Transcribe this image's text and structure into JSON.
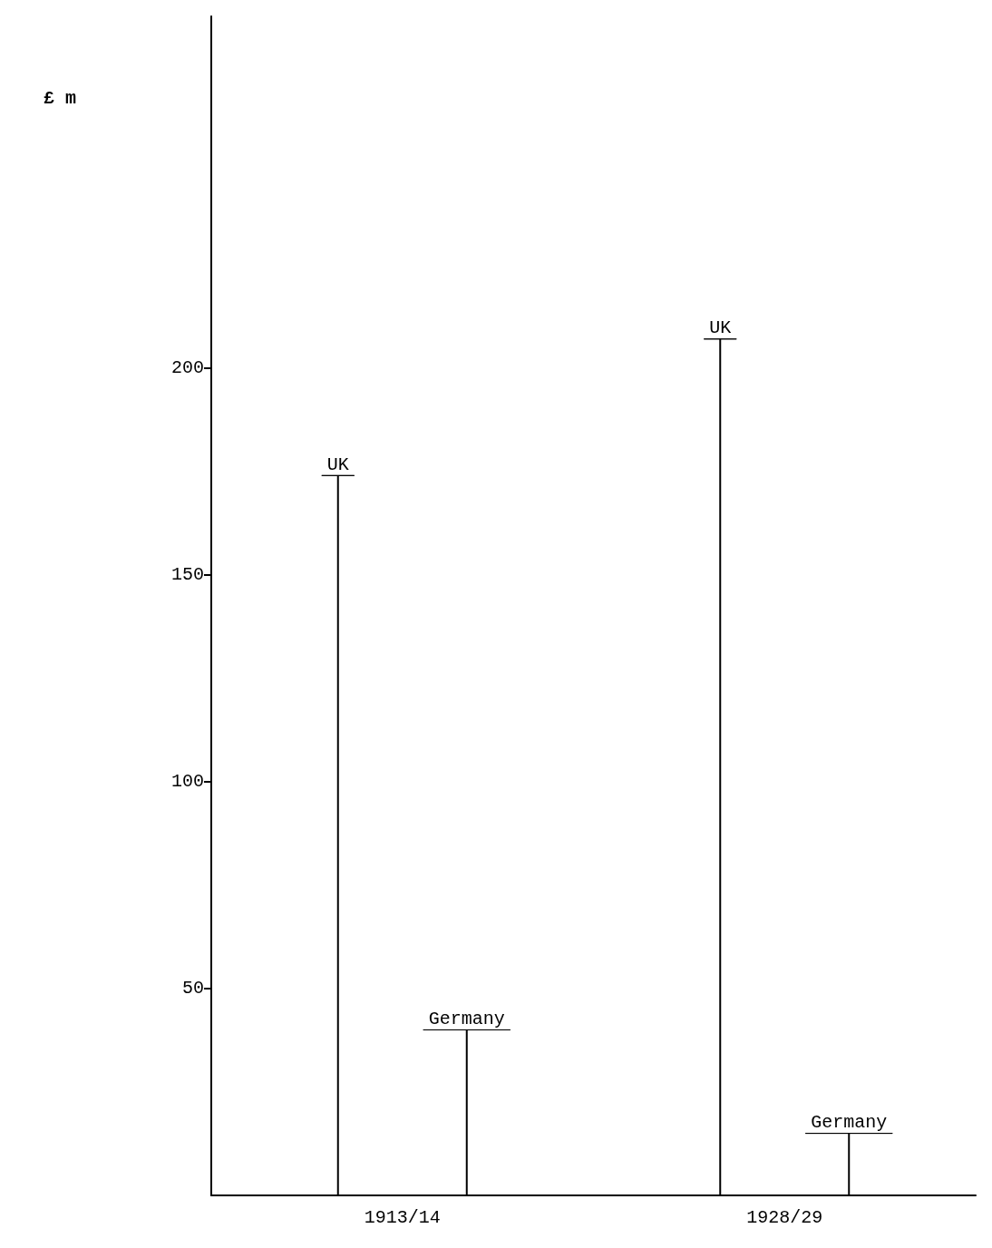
{
  "chart_data": {
    "type": "bar",
    "annotations": [
      "£ m"
    ],
    "categories": [
      "1913/14",
      "1928/29"
    ],
    "series": [
      {
        "name": "UK",
        "color": "#000000",
        "values": [
          174,
          207
        ]
      },
      {
        "name": "Germany",
        "color": "#000000",
        "values": [
          40,
          15
        ]
      }
    ],
    "ylim": [
      0,
      285
    ],
    "yticks": [
      50,
      100,
      150,
      200
    ]
  }
}
